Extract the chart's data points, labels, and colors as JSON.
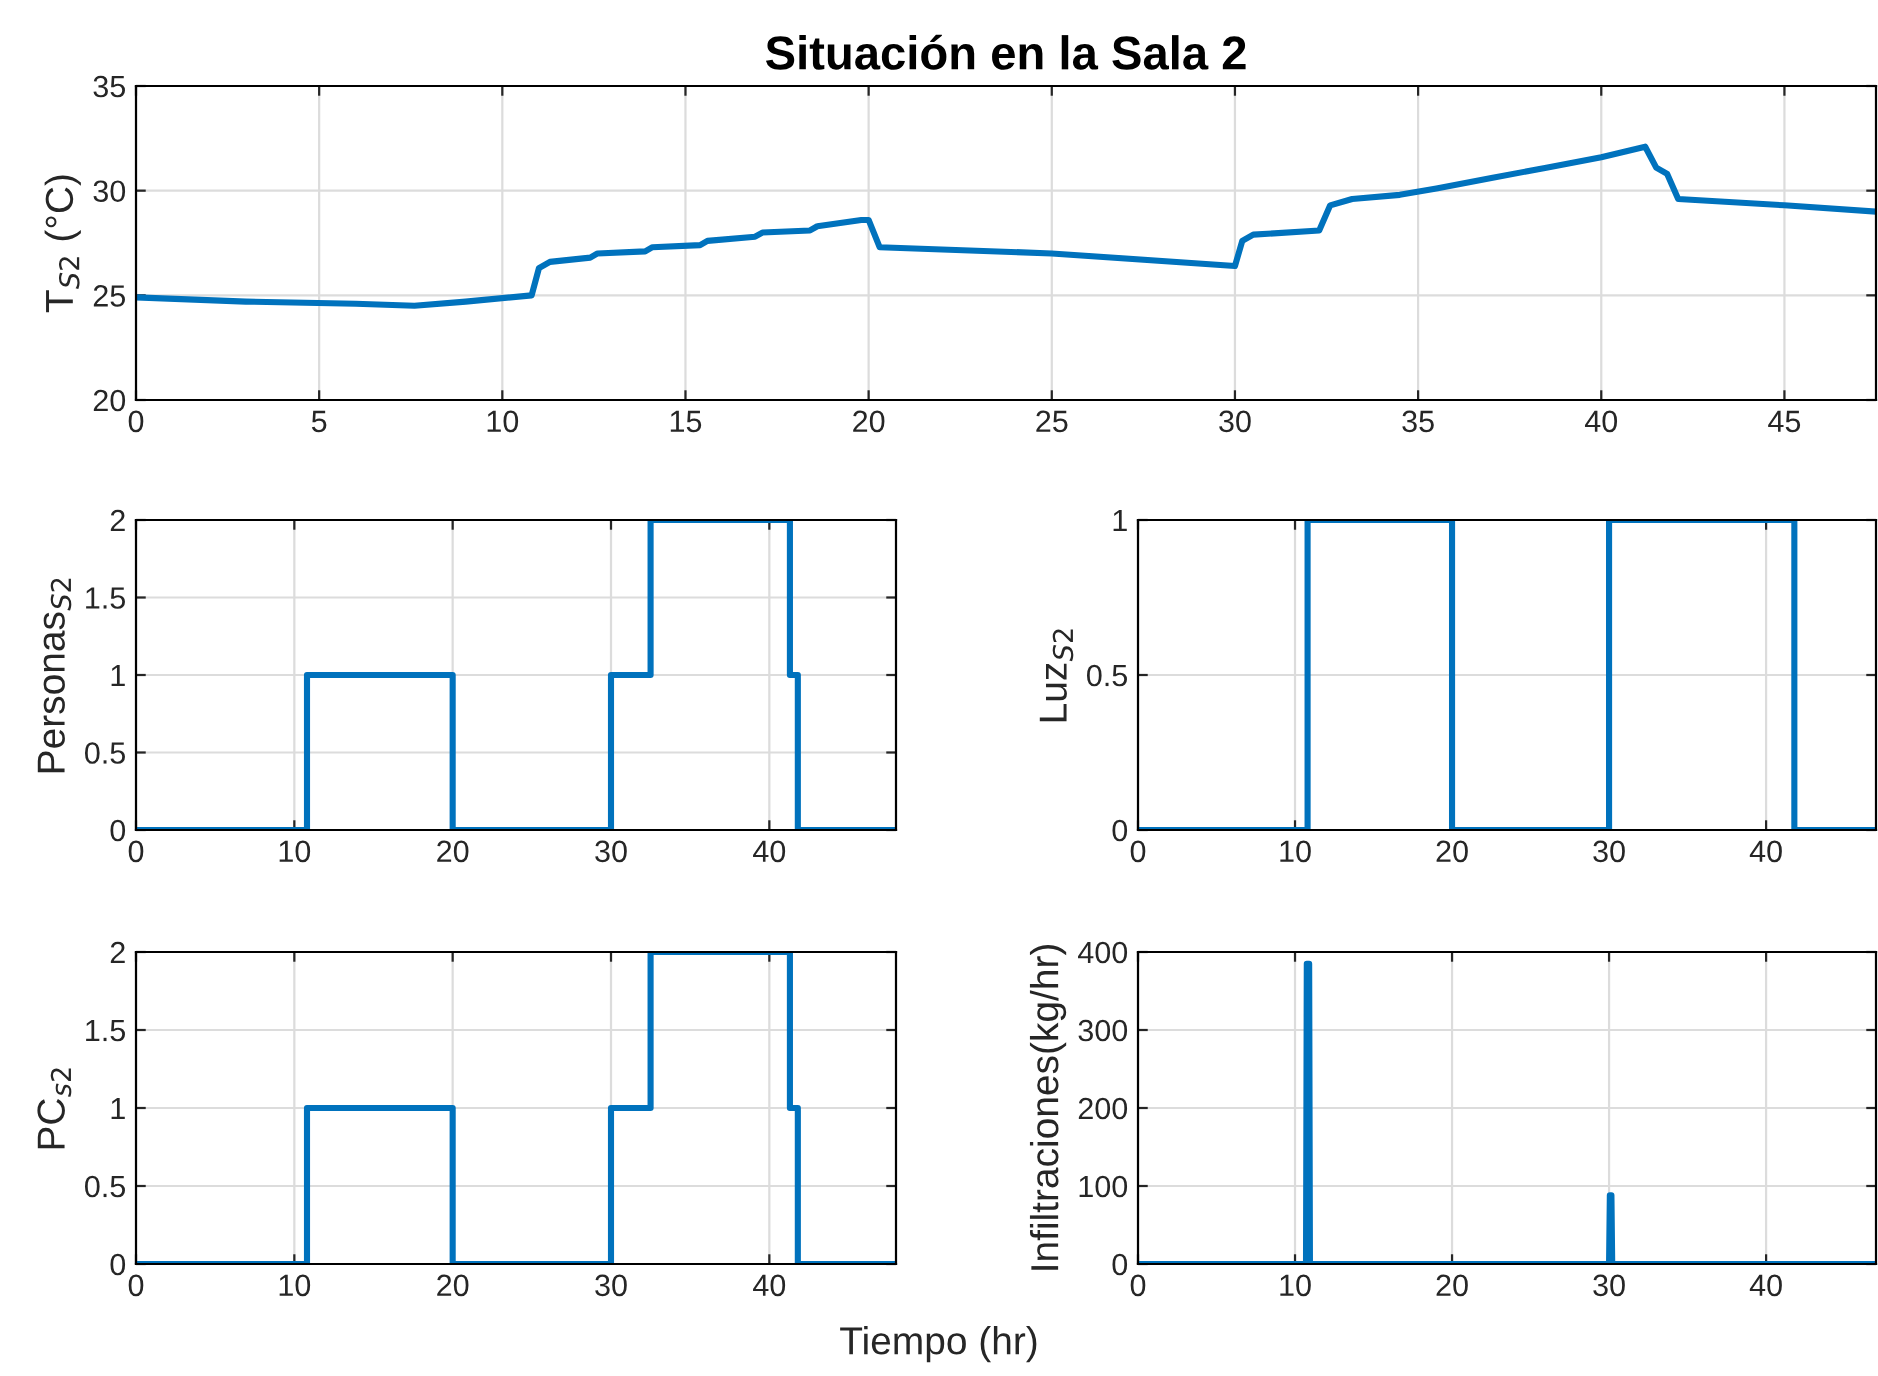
{
  "chart_data": [
    {
      "type": "line",
      "title": "Situación en la Sala 2",
      "ylabel": "T$_{S2}$ (°C)",
      "xlim": [
        0,
        47.5
      ],
      "xticks": [
        0,
        5,
        10,
        15,
        20,
        25,
        30,
        35,
        40,
        45
      ],
      "ylim": [
        20,
        35
      ],
      "yticks": [
        20,
        25,
        30,
        35
      ],
      "grid": true,
      "series": [
        {
          "color": "#0072bd",
          "x": [
            0,
            3,
            6,
            7.6,
            9,
            10.8,
            11.0,
            11.3,
            12.4,
            12.6,
            13.9,
            14.1,
            15.4,
            15.6,
            16.9,
            17.1,
            18.4,
            18.6,
            19.8,
            20.0,
            20.3,
            25,
            30.0,
            30.2,
            30.5,
            32.3,
            32.6,
            33.2,
            34.5,
            35.5,
            37,
            38.5,
            40,
            41.2,
            41.5,
            41.8,
            42.1,
            45,
            47.5
          ],
          "values": [
            24.9,
            24.7,
            24.6,
            24.5,
            24.7,
            25.0,
            26.3,
            26.6,
            26.8,
            27.0,
            27.1,
            27.3,
            27.4,
            27.6,
            27.8,
            28.0,
            28.1,
            28.3,
            28.6,
            28.6,
            27.3,
            27.0,
            26.4,
            27.6,
            27.9,
            28.1,
            29.3,
            29.6,
            29.8,
            30.1,
            30.6,
            31.1,
            31.6,
            32.1,
            31.1,
            30.8,
            29.6,
            29.3,
            29.0
          ]
        }
      ]
    },
    {
      "type": "step",
      "ylabel": "Personas$_{S2}$",
      "xlim": [
        0,
        48
      ],
      "xticks": [
        0,
        10,
        20,
        30,
        40
      ],
      "ylim": [
        0,
        2
      ],
      "yticks": [
        0,
        0.5,
        1,
        1.5,
        2
      ],
      "grid": true,
      "series": [
        {
          "color": "#0072bd",
          "x": [
            0,
            10.8,
            20,
            30,
            32.5,
            41.3,
            41.8,
            48
          ],
          "values": [
            0,
            1,
            0,
            1,
            2,
            1,
            0,
            0
          ]
        }
      ]
    },
    {
      "type": "step",
      "ylabel": "Luz$_{S2}$",
      "xlim": [
        0,
        47
      ],
      "xticks": [
        0,
        10,
        20,
        30,
        40
      ],
      "ylim": [
        0,
        1
      ],
      "yticks": [
        0,
        0.5,
        1
      ],
      "grid": true,
      "series": [
        {
          "color": "#0072bd",
          "x": [
            0,
            10.8,
            20,
            30,
            41.8,
            47
          ],
          "values": [
            0,
            1,
            0,
            1,
            0,
            0
          ]
        }
      ]
    },
    {
      "type": "step",
      "ylabel": "PC$_{s2}$",
      "xlabel": "Tiempo (hr)",
      "xlim": [
        0,
        48
      ],
      "xticks": [
        0,
        10,
        20,
        30,
        40
      ],
      "ylim": [
        0,
        2
      ],
      "yticks": [
        0,
        0.5,
        1,
        1.5,
        2
      ],
      "grid": true,
      "series": [
        {
          "color": "#0072bd",
          "x": [
            0,
            10.8,
            20,
            30,
            32.5,
            41.3,
            41.8,
            48
          ],
          "values": [
            0,
            1,
            0,
            1,
            2,
            1,
            0,
            0
          ]
        }
      ]
    },
    {
      "type": "line",
      "ylabel": "Infiltraciones(kg/hr)",
      "xlim": [
        0,
        47
      ],
      "xticks": [
        0,
        10,
        20,
        30,
        40
      ],
      "ylim": [
        0,
        400
      ],
      "yticks": [
        0,
        100,
        200,
        300,
        400
      ],
      "grid": true,
      "series": [
        {
          "color": "#0072bd",
          "x": [
            0,
            10.7,
            10.75,
            10.9,
            10.95,
            30.0,
            30.05,
            30.15,
            30.2,
            47
          ],
          "values": [
            0,
            0,
            385,
            385,
            0,
            0,
            88,
            88,
            0,
            0
          ]
        }
      ]
    }
  ]
}
